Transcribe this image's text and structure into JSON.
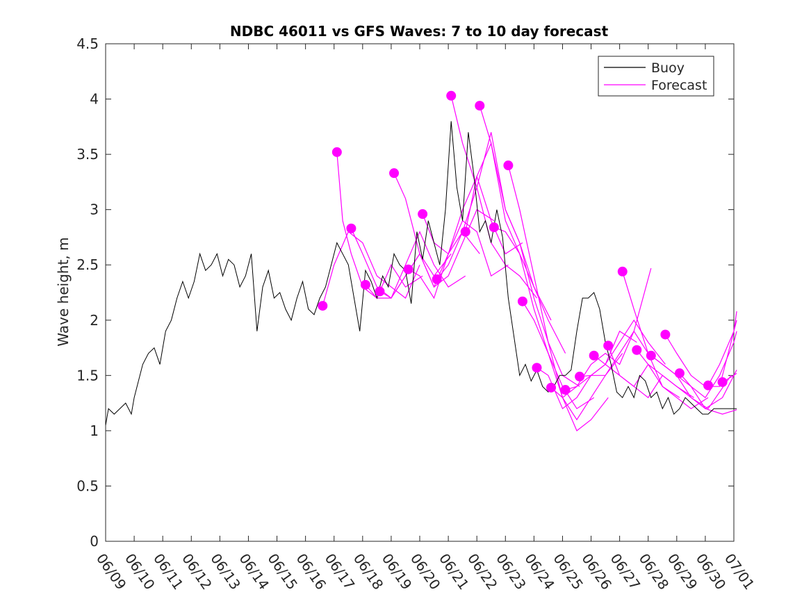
{
  "chart_data": {
    "type": "line",
    "title": "NDBC 46011 vs GFS Waves: 7 to 10 day forecast",
    "xlabel": "",
    "ylabel": "Wave height, m",
    "xlim": [
      "06/09",
      "07/01"
    ],
    "ylim": [
      0,
      4.5
    ],
    "yticks": [
      0,
      0.5,
      1,
      1.5,
      2,
      2.5,
      3,
      3.5,
      4,
      4.5
    ],
    "ytick_labels": [
      "0",
      "0.5",
      "1",
      "1.5",
      "2",
      "2.5",
      "3",
      "3.5",
      "4",
      "4.5"
    ],
    "xtick_labels": [
      "06/09",
      "06/10",
      "06/11",
      "06/12",
      "06/13",
      "06/14",
      "06/15",
      "06/16",
      "06/17",
      "06/18",
      "06/19",
      "06/20",
      "06/21",
      "06/22",
      "06/23",
      "06/24",
      "06/25",
      "06/26",
      "06/27",
      "06/28",
      "06/29",
      "06/30",
      "07/01"
    ],
    "grid": false,
    "legend": {
      "position": "top-right",
      "entries": [
        "Buoy",
        "Forecast"
      ]
    },
    "colors": {
      "buoy": "#000000",
      "forecast": "#ff00ff"
    },
    "series": [
      {
        "name": "Buoy",
        "x_days": [
          0.0,
          0.1,
          0.3,
          0.5,
          0.7,
          0.9,
          1.0,
          1.1,
          1.3,
          1.5,
          1.7,
          1.9,
          2.1,
          2.3,
          2.5,
          2.7,
          2.9,
          3.1,
          3.3,
          3.5,
          3.7,
          3.9,
          4.1,
          4.3,
          4.5,
          4.7,
          4.9,
          5.1,
          5.3,
          5.5,
          5.7,
          5.9,
          6.1,
          6.3,
          6.5,
          6.7,
          6.9,
          7.1,
          7.3,
          7.5,
          7.7,
          7.9,
          8.1,
          8.3,
          8.5,
          8.7,
          8.9,
          9.1,
          9.3,
          9.5,
          9.7,
          9.9,
          10.1,
          10.3,
          10.5,
          10.7,
          10.9,
          11.1,
          11.3,
          11.5,
          11.7,
          11.9,
          12.1,
          12.3,
          12.5,
          12.7,
          12.9,
          13.1,
          13.3,
          13.5,
          13.7,
          13.9,
          14.1,
          14.3,
          14.5,
          14.7,
          14.9,
          15.1,
          15.3,
          15.5,
          15.7,
          15.9,
          16.1,
          16.3,
          16.5,
          16.7,
          16.9,
          17.1,
          17.3,
          17.5,
          17.7,
          17.9,
          18.1,
          18.3,
          18.5,
          18.7,
          18.9,
          19.1,
          19.3,
          19.5,
          19.7,
          19.9,
          20.1,
          20.3,
          20.5,
          20.7,
          20.9,
          21.1,
          21.3,
          21.5,
          21.7,
          21.9,
          22.1
        ],
        "y": [
          1.05,
          1.2,
          1.15,
          1.2,
          1.25,
          1.15,
          1.3,
          1.4,
          1.6,
          1.7,
          1.75,
          1.6,
          1.9,
          2.0,
          2.2,
          2.35,
          2.2,
          2.35,
          2.6,
          2.45,
          2.5,
          2.6,
          2.4,
          2.55,
          2.5,
          2.3,
          2.4,
          2.6,
          1.9,
          2.3,
          2.45,
          2.2,
          2.25,
          2.1,
          2.0,
          2.2,
          2.35,
          2.1,
          2.05,
          2.2,
          2.3,
          2.5,
          2.7,
          2.6,
          2.5,
          2.2,
          1.9,
          2.45,
          2.35,
          2.2,
          2.4,
          2.3,
          2.6,
          2.5,
          2.45,
          2.15,
          2.8,
          2.55,
          2.9,
          2.7,
          2.5,
          3.0,
          3.8,
          3.2,
          2.9,
          3.7,
          3.3,
          2.8,
          2.9,
          2.7,
          3.0,
          2.75,
          2.2,
          1.85,
          1.5,
          1.6,
          1.45,
          1.55,
          1.4,
          1.35,
          1.4,
          1.5,
          1.5,
          1.55,
          1.9,
          2.2,
          2.2,
          2.25,
          2.1,
          1.8,
          1.6,
          1.35,
          1.3,
          1.4,
          1.3,
          1.5,
          1.45,
          1.3,
          1.35,
          1.2,
          1.3,
          1.15,
          1.2,
          1.3,
          1.25,
          1.2,
          1.15,
          1.15,
          1.2,
          1.2,
          1.2,
          1.2,
          1.2
        ]
      },
      {
        "name": "Forecast",
        "runs": [
          {
            "x_days": [
              7.6,
              8.0,
              8.5,
              9.0,
              9.5,
              10.0,
              10.5,
              11.0
            ],
            "y": [
              2.13,
              2.5,
              2.8,
              2.7,
              2.4,
              2.3,
              2.2,
              2.5
            ]
          },
          {
            "x_days": [
              8.1,
              8.3,
              8.6,
              9.0,
              9.5,
              10.0,
              10.5,
              11.1
            ],
            "y": [
              3.52,
              2.9,
              2.6,
              2.3,
              2.2,
              2.5,
              2.3,
              2.4
            ]
          },
          {
            "x_days": [
              8.6,
              9.0,
              9.5,
              10.0,
              10.5,
              11.0,
              11.5,
              12.1
            ],
            "y": [
              2.83,
              2.6,
              2.3,
              2.2,
              2.4,
              2.6,
              2.4,
              2.6
            ]
          },
          {
            "x_days": [
              9.1,
              9.5,
              10.0,
              10.5,
              11.0,
              11.5,
              12.0,
              12.6
            ],
            "y": [
              2.32,
              2.2,
              2.2,
              2.5,
              2.8,
              2.5,
              2.3,
              2.4
            ]
          },
          {
            "x_days": [
              9.6,
              10.0,
              10.5,
              11.0,
              11.5,
              12.0,
              12.5,
              13.1
            ],
            "y": [
              2.26,
              2.2,
              2.4,
              2.6,
              2.3,
              2.6,
              2.8,
              2.6
            ]
          },
          {
            "x_days": [
              10.1,
              10.5,
              11.0,
              11.5,
              12.0,
              12.5,
              13.0,
              13.6
            ],
            "y": [
              3.33,
              3.1,
              2.6,
              2.3,
              2.4,
              2.7,
              3.0,
              2.9
            ]
          },
          {
            "x_days": [
              10.6,
              11.0,
              11.5,
              12.0,
              12.5,
              13.0,
              13.5,
              14.1
            ],
            "y": [
              2.46,
              2.4,
              2.2,
              2.6,
              2.9,
              2.8,
              2.4,
              2.5
            ]
          },
          {
            "x_days": [
              11.1,
              11.5,
              12.0,
              12.5,
              13.0,
              13.5,
              14.0,
              14.6
            ],
            "y": [
              2.96,
              2.7,
              2.6,
              3.0,
              3.3,
              2.9,
              2.6,
              2.7
            ]
          },
          {
            "x_days": [
              11.6,
              12.0,
              12.5,
              13.0,
              13.5,
              14.0,
              14.5,
              15.1
            ],
            "y": [
              2.37,
              2.5,
              2.8,
              3.2,
              2.7,
              2.5,
              2.4,
              2.2
            ]
          },
          {
            "x_days": [
              12.1,
              12.5,
              13.0,
              13.5,
              14.0,
              14.5,
              15.0,
              15.6
            ],
            "y": [
              4.03,
              3.6,
              3.2,
              3.7,
              3.0,
              2.7,
              2.3,
              2.0
            ]
          },
          {
            "x_days": [
              12.6,
              13.0,
              13.5,
              14.0,
              14.5,
              15.0,
              15.5,
              16.1
            ],
            "y": [
              2.8,
              3.3,
              3.6,
              2.9,
              2.6,
              2.3,
              2.0,
              1.7
            ]
          },
          {
            "x_days": [
              13.1,
              13.5,
              14.0,
              14.5,
              15.0,
              15.5,
              16.0,
              16.6
            ],
            "y": [
              3.94,
              3.6,
              3.0,
              2.7,
              2.2,
              1.8,
              1.5,
              1.4
            ]
          },
          {
            "x_days": [
              13.6,
              14.0,
              14.5,
              15.0,
              15.5,
              16.0,
              16.5,
              17.1
            ],
            "y": [
              2.84,
              2.8,
              2.6,
              2.1,
              1.7,
              1.4,
              1.2,
              1.3
            ]
          },
          {
            "x_days": [
              14.1,
              14.5,
              15.0,
              15.5,
              16.0,
              16.5,
              17.0,
              17.6
            ],
            "y": [
              3.4,
              3.0,
              2.4,
              1.8,
              1.3,
              1.0,
              1.1,
              1.3
            ]
          },
          {
            "x_days": [
              14.6,
              15.0,
              15.5,
              16.0,
              16.5,
              17.0,
              17.5,
              18.1
            ],
            "y": [
              2.17,
              2.0,
              1.7,
              1.3,
              1.1,
              1.3,
              1.5,
              1.7
            ]
          },
          {
            "x_days": [
              15.1,
              15.5,
              16.0,
              16.5,
              17.0,
              17.5,
              18.0,
              18.6
            ],
            "y": [
              1.57,
              1.5,
              1.2,
              1.3,
              1.5,
              1.6,
              1.9,
              1.8
            ]
          },
          {
            "x_days": [
              15.6,
              16.0,
              16.5,
              17.0,
              17.5,
              18.0,
              18.5,
              19.1
            ],
            "y": [
              1.39,
              1.3,
              1.4,
              1.6,
              1.7,
              1.6,
              1.9,
              2.47
            ]
          },
          {
            "x_days": [
              16.1,
              16.5,
              17.0,
              17.5,
              18.0,
              18.5,
              19.0,
              19.6
            ],
            "y": [
              1.37,
              1.4,
              1.5,
              1.6,
              1.8,
              2.0,
              1.8,
              1.6
            ]
          },
          {
            "x_days": [
              16.6,
              17.0,
              17.5,
              18.0,
              18.5,
              19.0,
              19.5,
              20.1
            ],
            "y": [
              1.49,
              1.5,
              1.5,
              1.7,
              1.9,
              1.7,
              1.4,
              1.3
            ]
          },
          {
            "x_days": [
              17.1,
              17.5,
              18.0,
              18.5,
              19.0,
              19.5,
              20.0,
              20.6
            ],
            "y": [
              1.68,
              1.6,
              1.5,
              1.4,
              1.3,
              1.5,
              1.4,
              1.3
            ]
          },
          {
            "x_days": [
              17.6,
              18.0,
              18.5,
              19.0,
              19.5,
              20.0,
              20.5,
              21.1
            ],
            "y": [
              1.77,
              1.5,
              1.4,
              1.6,
              1.4,
              1.3,
              1.2,
              1.3
            ]
          },
          {
            "x_days": [
              18.1,
              18.5,
              19.0,
              19.5,
              20.0,
              20.5,
              21.1,
              21.9
            ],
            "y": [
              2.44,
              2.1,
              1.7,
              1.6,
              1.5,
              1.3,
              1.2,
              1.5
            ]
          },
          {
            "x_days": [
              18.6,
              19.0,
              19.5,
              20.0,
              20.5,
              21.0,
              21.6,
              22.1
            ],
            "y": [
              1.73,
              1.6,
              1.5,
              1.4,
              1.3,
              1.2,
              1.15,
              1.19
            ]
          },
          {
            "x_days": [
              19.1,
              19.5,
              20.0,
              20.5,
              21.0,
              21.6,
              22.1
            ],
            "y": [
              1.68,
              1.6,
              1.5,
              1.4,
              1.2,
              1.3,
              1.55
            ]
          },
          {
            "x_days": [
              19.6,
              20.0,
              20.5,
              21.0,
              21.5,
              22.1
            ],
            "y": [
              1.87,
              1.7,
              1.5,
              1.4,
              1.4,
              2.0
            ]
          },
          {
            "x_days": [
              20.1,
              20.5,
              21.0,
              21.5,
              22.0,
              22.1
            ],
            "y": [
              1.52,
              1.4,
              1.3,
              1.5,
              1.8,
              1.9
            ]
          },
          {
            "x_days": [
              21.1,
              21.5,
              22.0,
              22.1
            ],
            "y": [
              1.41,
              1.6,
              1.9,
              2.08
            ]
          },
          {
            "x_days": [
              21.6,
              22.0,
              22.1
            ],
            "y": [
              1.44,
              1.5,
              1.52
            ]
          }
        ]
      }
    ]
  }
}
